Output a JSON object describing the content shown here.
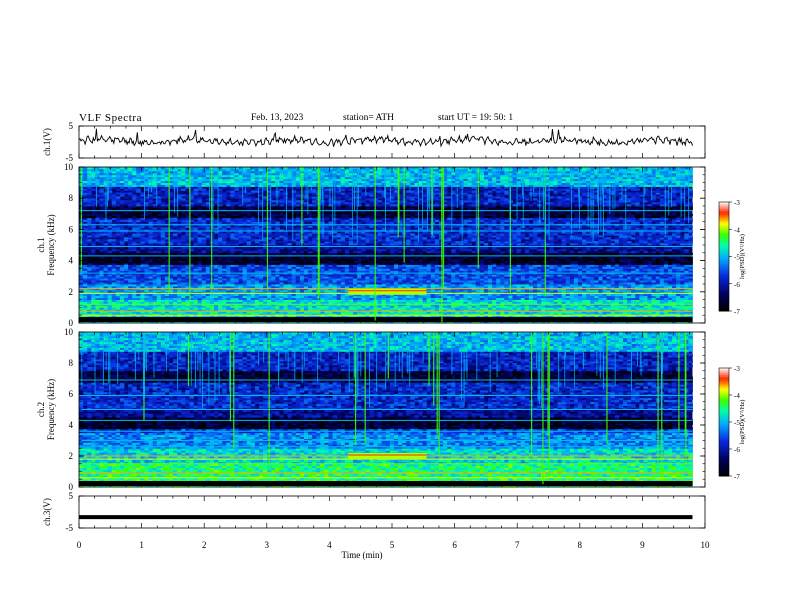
{
  "header": {
    "title": "VLF  Spectra",
    "date": "Feb. 13, 2023",
    "station": "station= ATH",
    "start_ut": "start  UT  =    19: 50: 1"
  },
  "chart_data": [
    {
      "type": "line",
      "name": "ch1-waveform",
      "ylabel": "ch.1(V)",
      "ylim": [
        -5,
        5
      ],
      "yticks": [
        -5,
        5
      ],
      "xlim": [
        0,
        10
      ],
      "data_end_min": 9.8,
      "level": 0.3
    },
    {
      "type": "heatmap",
      "name": "ch1-spectrogram",
      "ylabel": "ch.1\nFrequency  (kHz)",
      "ylim": [
        0,
        10
      ],
      "yticks": [
        0,
        2,
        4,
        6,
        8,
        10
      ],
      "xlim": [
        0,
        10
      ],
      "data_end_min": 9.8,
      "colorbar": {
        "label": "log(PSD)(V²/Hz)",
        "range": [
          -7,
          -3
        ],
        "ticks": [
          -3,
          -4,
          -5,
          -6,
          -7
        ]
      }
    },
    {
      "type": "heatmap",
      "name": "ch2-spectrogram",
      "ylabel": "ch.2\nFrequency  (kHz)",
      "ylim": [
        0,
        10
      ],
      "yticks": [
        0,
        2,
        4,
        6,
        8,
        10
      ],
      "xlim": [
        0,
        10
      ],
      "data_end_min": 9.8,
      "colorbar": {
        "label": "log(PSD)(V²/Hz)",
        "range": [
          -7,
          -3
        ],
        "ticks": [
          -3,
          -4,
          -5,
          -6,
          -7
        ]
      }
    },
    {
      "type": "line",
      "name": "ch3-waveform",
      "ylabel": "ch.3(V)",
      "ylim": [
        -5,
        5
      ],
      "yticks": [
        -5,
        5
      ],
      "xlim": [
        0,
        10
      ],
      "data_end_min": 9.8,
      "level": -1.6
    }
  ],
  "xaxis": {
    "label": "Time  (min)",
    "ticks": [
      0,
      1,
      2,
      3,
      4,
      5,
      6,
      7,
      8,
      9,
      10
    ]
  }
}
